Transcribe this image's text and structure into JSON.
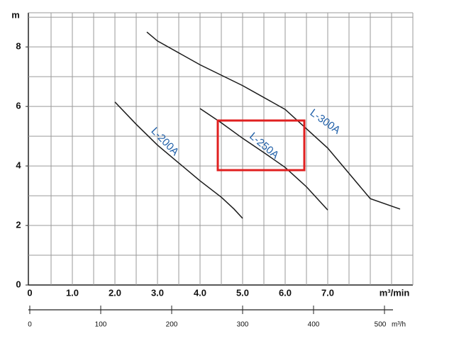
{
  "chart_data": {
    "type": "line",
    "y_label": "m",
    "x_label": "m³/min",
    "x2_label": "m³/h",
    "xlim": [
      0,
      9
    ],
    "ylim": [
      0,
      9.1
    ],
    "xticks": [
      0,
      {
        "value": 1,
        "label": "1.0"
      },
      {
        "value": 2,
        "label": "2.0"
      },
      {
        "value": 3,
        "label": "3.0"
      },
      {
        "value": 4,
        "label": "4.0"
      },
      {
        "value": 5,
        "label": "5.0"
      },
      {
        "value": 6,
        "label": "6.0"
      },
      {
        "value": 7,
        "label": "7.0"
      }
    ],
    "yticks": [
      0,
      2,
      4,
      6,
      8
    ],
    "x2lim": [
      0,
      540
    ],
    "x2ticks": [
      0,
      100,
      200,
      300,
      400,
      500
    ],
    "grid": true,
    "series": [
      {
        "name": "L-200A",
        "color": "#1a1a1a",
        "label_color": "#1f5fa8",
        "x": [
          2.0,
          2.5,
          3.0,
          3.5,
          4.0,
          4.5,
          4.8,
          5.0
        ],
        "values": [
          6.15,
          5.4,
          4.7,
          4.1,
          3.5,
          2.95,
          2.55,
          2.24
        ]
      },
      {
        "name": "L-250A",
        "color": "#1a1a1a",
        "label_color": "#1f5fa8",
        "x": [
          4.0,
          4.5,
          5.0,
          5.5,
          6.0,
          6.5,
          7.0
        ],
        "values": [
          5.93,
          5.45,
          4.93,
          4.45,
          3.95,
          3.3,
          2.52
        ]
      },
      {
        "name": "L-300A",
        "color": "#1a1a1a",
        "label_color": "#1f5fa8",
        "x": [
          2.75,
          3.0,
          4.0,
          5.0,
          6.0,
          7.0,
          8.0,
          8.7
        ],
        "values": [
          8.5,
          8.2,
          7.4,
          6.7,
          5.9,
          4.6,
          2.9,
          2.55
        ]
      }
    ]
  }
}
